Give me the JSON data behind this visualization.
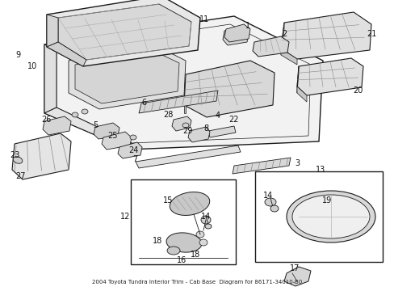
{
  "bg_color": "#ffffff",
  "line_color": "#1a1a1a",
  "fill_light": "#f5f5f5",
  "fill_mid": "#e0e0e0",
  "fill_dark": "#c8c8c8",
  "fig_width": 4.89,
  "fig_height": 3.6,
  "dpi": 100,
  "label_fontsize": 7.0,
  "title_text": "2004 Toyota Tundra Interior Trim - Cab Base\nDiagram for 86171-34010-B0"
}
